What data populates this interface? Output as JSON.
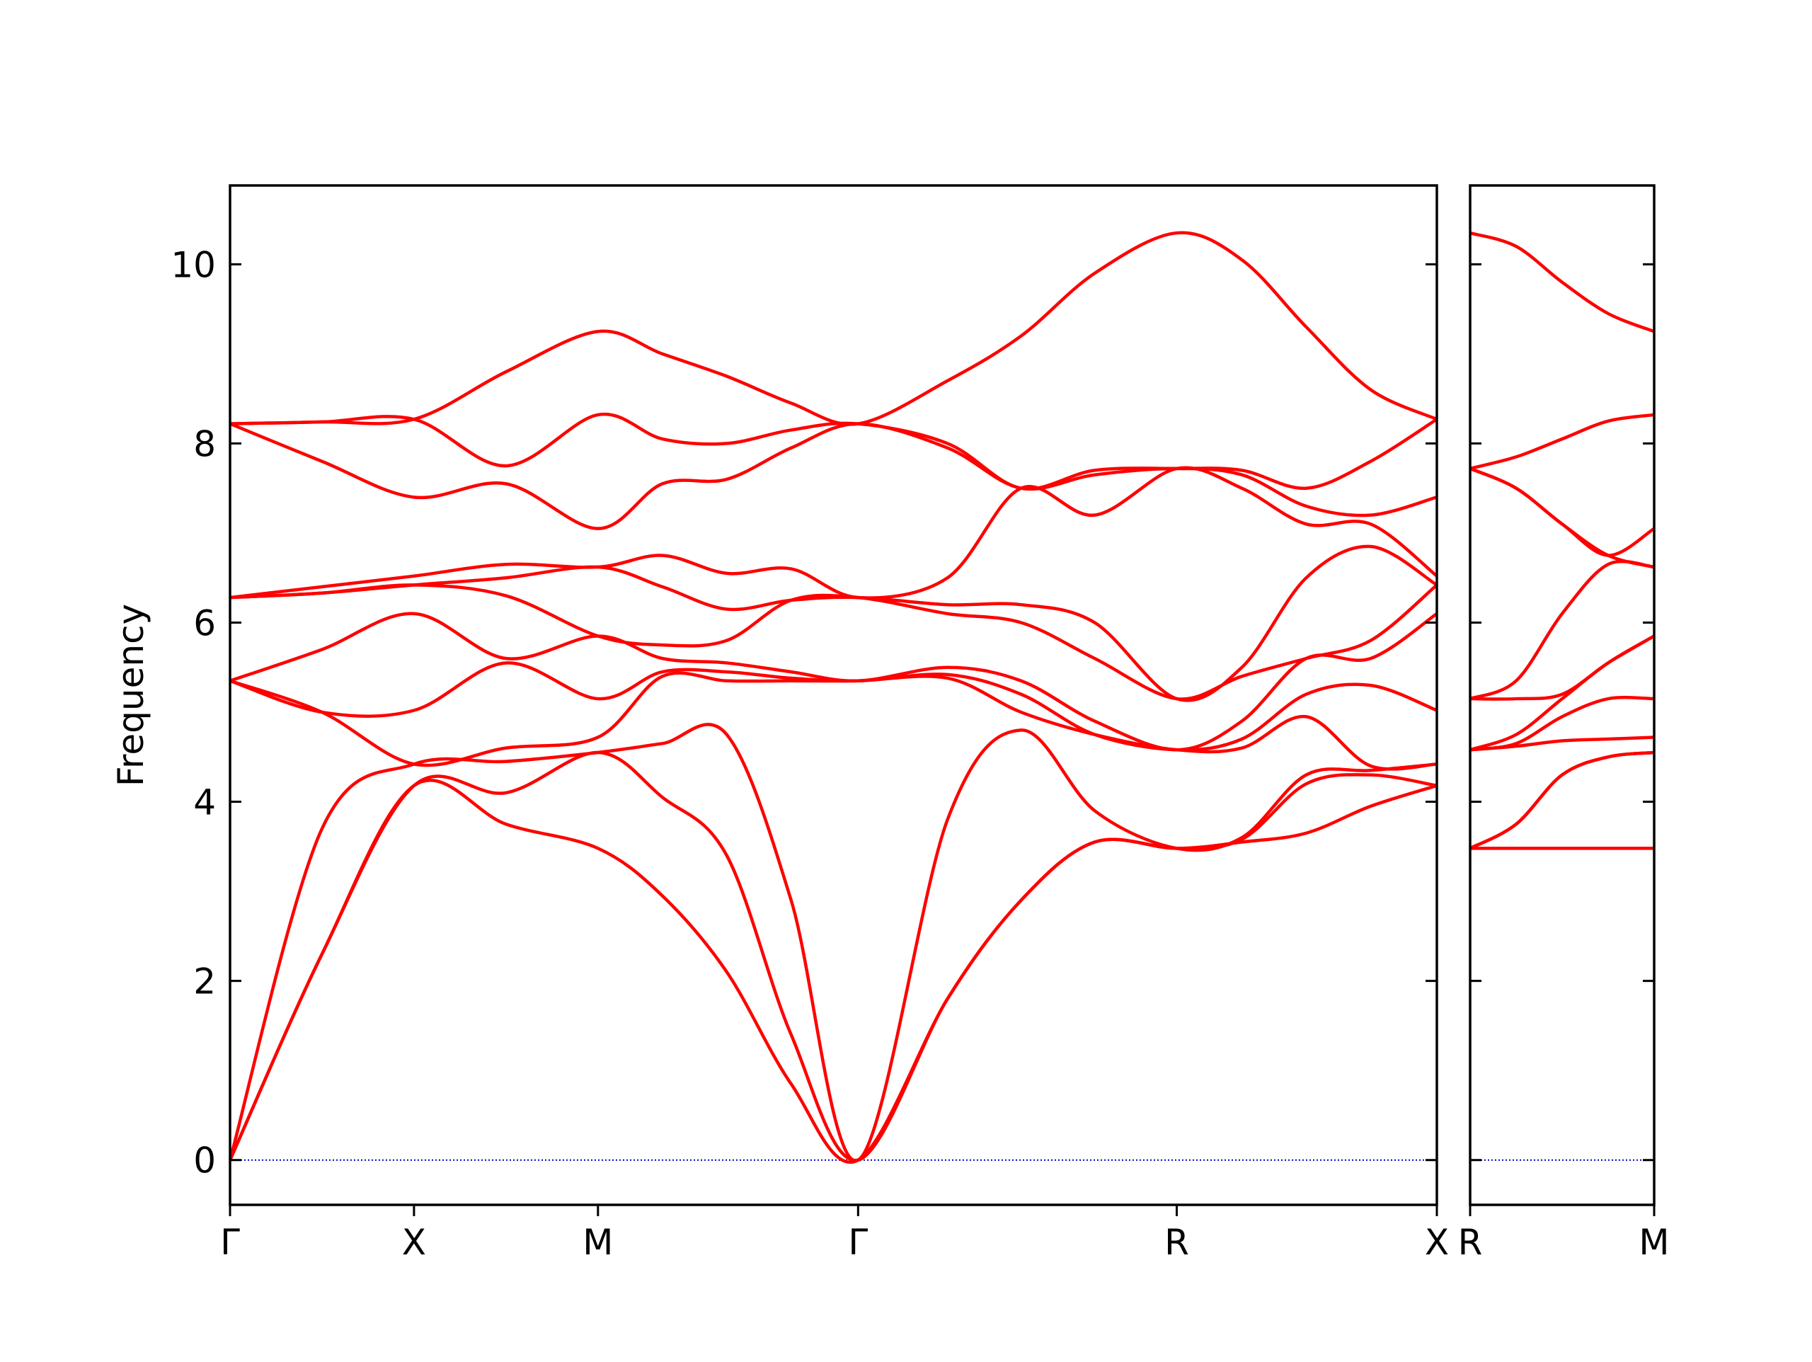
{
  "chart_data": [
    {
      "type": "line",
      "ylabel": "Frequency",
      "color": "#ff0000",
      "zero_line": true,
      "zero_line_color": "#0000cc",
      "show_ytick_labels": true,
      "x": [
        0,
        0.5,
        1,
        1.5,
        2,
        2.35,
        2.7,
        3.05,
        3.414,
        3.9,
        4.3,
        4.7,
        5.146,
        5.5,
        5.85,
        6.2,
        6.56
      ],
      "xlim": [
        0,
        6.56
      ],
      "xticks": [
        {
          "value": 0,
          "label": "Γ"
        },
        {
          "value": 1,
          "label": "X"
        },
        {
          "value": 2,
          "label": "M"
        },
        {
          "value": 3.414,
          "label": "Γ"
        },
        {
          "value": 5.146,
          "label": "R"
        },
        {
          "value": 6.56,
          "label": "X"
        }
      ],
      "ylim": [
        -0.5,
        10.88
      ],
      "yticks": [
        0,
        2,
        4,
        6,
        8,
        10
      ],
      "series": [
        {
          "values": [
            0,
            2.3,
            4.18,
            3.75,
            3.48,
            2.95,
            2.1,
            0.85,
            0,
            1.8,
            2.9,
            3.55,
            3.48,
            3.55,
            3.65,
            3.95,
            4.18
          ]
        },
        {
          "values": [
            0,
            2.3,
            4.18,
            4.1,
            4.55,
            4.05,
            3.4,
            1.4,
            0,
            1.8,
            2.9,
            3.55,
            3.48,
            3.58,
            4.2,
            4.3,
            4.18
          ]
        },
        {
          "values": [
            0,
            3.7,
            4.42,
            4.45,
            4.55,
            4.65,
            4.75,
            2.9,
            0,
            3.8,
            4.8,
            3.9,
            3.48,
            3.6,
            4.3,
            4.35,
            4.42
          ]
        },
        {
          "values": [
            5.35,
            5.0,
            4.42,
            4.6,
            4.72,
            5.4,
            5.35,
            5.35,
            5.35,
            5.38,
            5.0,
            4.75,
            4.58,
            4.6,
            4.95,
            4.4,
            4.42
          ]
        },
        {
          "values": [
            5.35,
            5.0,
            5.02,
            5.55,
            5.15,
            5.45,
            5.45,
            5.38,
            5.35,
            5.42,
            5.2,
            4.75,
            4.58,
            4.7,
            5.2,
            5.3,
            5.02
          ]
        },
        {
          "values": [
            5.35,
            5.7,
            6.1,
            5.6,
            5.85,
            5.6,
            5.55,
            5.45,
            5.35,
            5.5,
            5.35,
            4.9,
            4.58,
            4.9,
            5.6,
            5.6,
            6.1
          ]
        },
        {
          "values": [
            6.28,
            6.33,
            6.42,
            6.3,
            5.85,
            5.75,
            5.8,
            6.25,
            6.28,
            6.1,
            6.0,
            5.6,
            5.15,
            5.4,
            5.6,
            5.8,
            6.42
          ]
        },
        {
          "values": [
            6.28,
            6.33,
            6.42,
            6.5,
            6.62,
            6.4,
            6.15,
            6.25,
            6.28,
            6.2,
            6.2,
            6.0,
            5.15,
            5.5,
            6.5,
            6.85,
            6.42
          ]
        },
        {
          "values": [
            6.28,
            6.4,
            6.52,
            6.65,
            6.62,
            6.75,
            6.55,
            6.6,
            6.28,
            6.5,
            7.5,
            7.2,
            7.72,
            7.5,
            7.1,
            7.1,
            6.52
          ]
        },
        {
          "values": [
            8.22,
            7.8,
            7.4,
            7.55,
            7.05,
            7.55,
            7.6,
            7.95,
            8.22,
            7.95,
            7.5,
            7.65,
            7.72,
            7.65,
            7.3,
            7.2,
            7.4
          ]
        },
        {
          "values": [
            8.22,
            8.24,
            8.27,
            7.75,
            8.32,
            8.05,
            8.0,
            8.15,
            8.22,
            8.0,
            7.5,
            7.7,
            7.72,
            7.7,
            7.5,
            7.8,
            8.27
          ]
        },
        {
          "values": [
            8.22,
            8.24,
            8.27,
            8.8,
            9.25,
            9.0,
            8.75,
            8.45,
            8.22,
            8.7,
            9.2,
            9.9,
            10.35,
            10.05,
            9.3,
            8.6,
            8.27
          ]
        }
      ]
    },
    {
      "type": "line",
      "color": "#ff0000",
      "zero_line": true,
      "zero_line_color": "#0000cc",
      "show_ytick_labels": false,
      "x": [
        0,
        0.25,
        0.5,
        0.75,
        1
      ],
      "xlim": [
        0,
        1
      ],
      "xticks": [
        {
          "value": 0,
          "label": "R"
        },
        {
          "value": 1,
          "label": "M"
        }
      ],
      "ylim": [
        -0.5,
        10.88
      ],
      "yticks": [
        0,
        2,
        4,
        6,
        8,
        10
      ],
      "series": [
        {
          "values": [
            3.48,
            3.48,
            3.48,
            3.48,
            3.48
          ]
        },
        {
          "values": [
            3.48,
            3.75,
            4.3,
            4.5,
            4.55
          ]
        },
        {
          "values": [
            3.48,
            3.75,
            4.3,
            4.5,
            4.55
          ]
        },
        {
          "values": [
            4.58,
            4.62,
            4.68,
            4.7,
            4.72
          ]
        },
        {
          "values": [
            4.58,
            4.65,
            4.95,
            5.15,
            5.15
          ]
        },
        {
          "values": [
            4.58,
            4.75,
            5.15,
            5.55,
            5.85
          ]
        },
        {
          "values": [
            5.15,
            5.15,
            5.2,
            5.55,
            5.85
          ]
        },
        {
          "values": [
            5.15,
            5.35,
            6.1,
            6.65,
            6.62
          ]
        },
        {
          "values": [
            7.72,
            7.5,
            7.1,
            6.75,
            6.62
          ]
        },
        {
          "values": [
            7.72,
            7.5,
            7.1,
            6.75,
            7.05
          ]
        },
        {
          "values": [
            7.72,
            7.85,
            8.05,
            8.25,
            8.32
          ]
        },
        {
          "values": [
            10.35,
            10.2,
            9.8,
            9.45,
            9.25
          ]
        }
      ]
    }
  ]
}
